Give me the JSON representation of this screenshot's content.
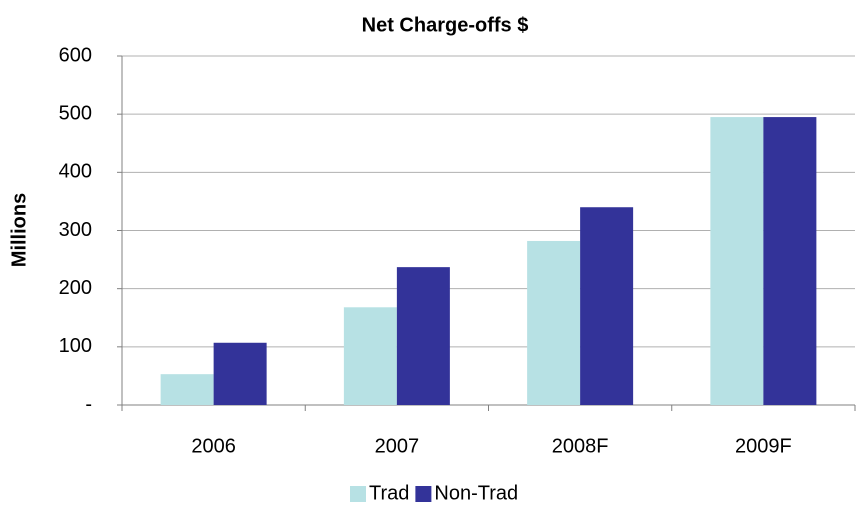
{
  "chart_data": {
    "type": "bar",
    "title": "Net Charge-offs $",
    "y_label": "Millions",
    "categories": [
      "2006",
      "2007",
      "2008F",
      "2009F"
    ],
    "series": [
      {
        "name": "Trad",
        "color": "#b7e1e4",
        "values": [
          53,
          168,
          282,
          495
        ]
      },
      {
        "name": "Non-Trad",
        "color": "#333399",
        "values": [
          107,
          237,
          340,
          495
        ]
      }
    ],
    "ylim": [
      0,
      600
    ],
    "yticks": [
      {
        "value": 0,
        "label": "-"
      },
      100,
      200,
      300,
      400,
      500,
      600
    ],
    "grid": true,
    "legend": "bottom"
  }
}
